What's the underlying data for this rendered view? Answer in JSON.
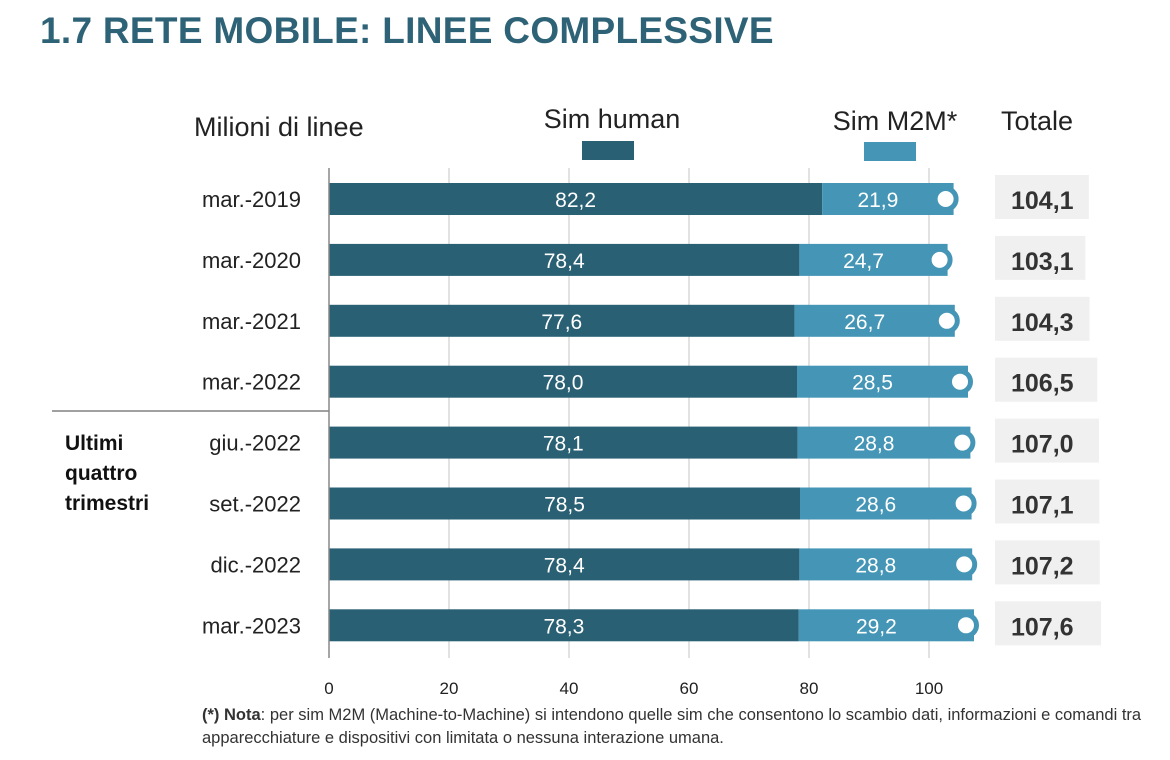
{
  "title": "1.7 RETE MOBILE: LINEE COMPLESSIVE",
  "colors": {
    "title": "#2e6377",
    "human": "#2a6074",
    "m2m": "#4596b6",
    "total_bg": "#f0f0f0",
    "grid": "#d9d9d9"
  },
  "note": {
    "prefix": "(*) Nota",
    "text": ": per sim M2M (Machine-to-Machine) si intendono quelle sim che consentono lo scambio dati, informazioni e comandi tra apparecchiature e dispositivi con limitata o nessuna interazione umana."
  },
  "chart_data": {
    "type": "bar",
    "orientation": "horizontal",
    "stacked": true,
    "ylabel": "Milioni di linee",
    "total_label": "Totale",
    "group_label": [
      "Ultimi",
      "quattro",
      "trimestri"
    ],
    "categories": [
      "mar.-2019",
      "mar.-2020",
      "mar.-2021",
      "mar.-2022",
      "giu.-2022",
      "set.-2022",
      "dic.-2022",
      "mar.-2023"
    ],
    "series": [
      {
        "name": "Sim human",
        "values": [
          82.2,
          78.4,
          77.6,
          78.0,
          78.1,
          78.5,
          78.4,
          78.3
        ]
      },
      {
        "name": "Sim M2M*",
        "values": [
          21.9,
          24.7,
          26.7,
          28.5,
          28.8,
          28.6,
          28.8,
          29.2
        ]
      }
    ],
    "value_labels": [
      [
        "82,2",
        "78,4",
        "77,6",
        "78,0",
        "78,1",
        "78,5",
        "78,4",
        "78,3"
      ],
      [
        "21,9",
        "24,7",
        "26,7",
        "28,5",
        "28,8",
        "28,6",
        "28,8",
        "29,2"
      ]
    ],
    "totals": [
      104.1,
      103.1,
      104.3,
      106.5,
      107.0,
      107.1,
      107.2,
      107.6
    ],
    "total_labels": [
      "104,1",
      "103,1",
      "104,3",
      "106,5",
      "107,0",
      "107,1",
      "107,2",
      "107,6"
    ],
    "xticks": [
      "0",
      "20",
      "40",
      "60",
      "80",
      "100"
    ],
    "xlim": [
      0,
      110
    ],
    "grid": true,
    "legend": "top"
  }
}
